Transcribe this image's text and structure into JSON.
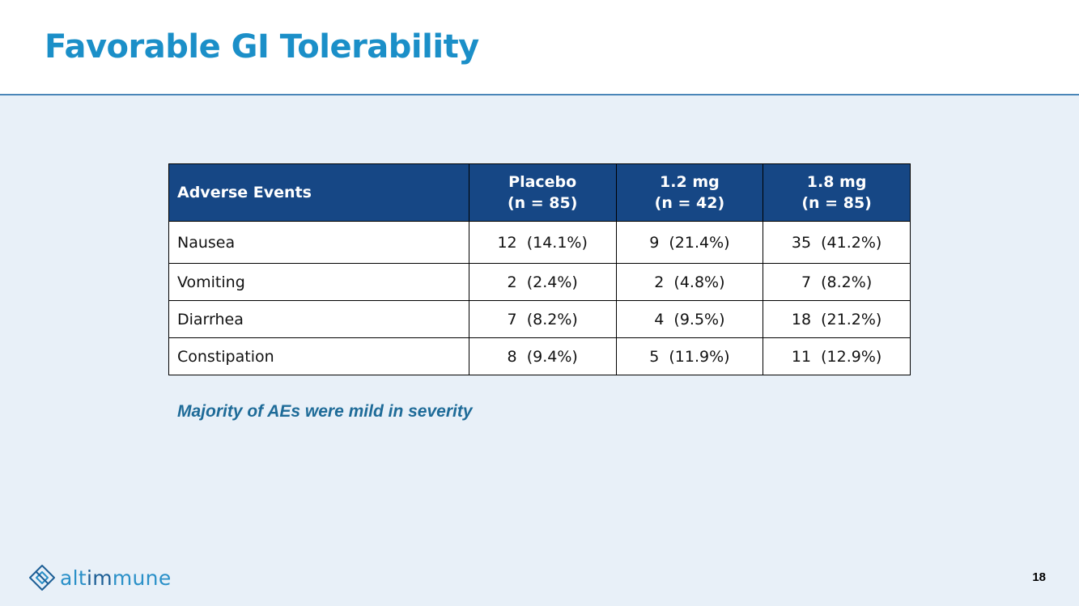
{
  "slide": {
    "title": "Favorable GI Tolerability",
    "page_number": "18"
  },
  "table": {
    "headers": [
      {
        "line1": "Adverse Events"
      },
      {
        "line1": "Placebo",
        "line2": "(n = 85)"
      },
      {
        "line1": "1.2 mg",
        "line2": "(n = 42)"
      },
      {
        "line1": "1.8 mg",
        "line2": "(n = 85)"
      }
    ],
    "rows": [
      {
        "event": "Nausea",
        "placebo": "12  (14.1%)",
        "dose_1_2": "9  (21.4%)",
        "dose_1_8": "35  (41.2%)"
      },
      {
        "event": "Vomiting",
        "placebo": "2  (2.4%)",
        "dose_1_2": "2  (4.8%)",
        "dose_1_8": "7  (8.2%)"
      },
      {
        "event": "Diarrhea",
        "placebo": "7  (8.2%)",
        "dose_1_2": "4  (9.5%)",
        "dose_1_8": "18  (21.2%)"
      },
      {
        "event": "Constipation",
        "placebo": "8  (9.4%)",
        "dose_1_2": "5  (11.9%)",
        "dose_1_8": "11  (12.9%)"
      }
    ]
  },
  "footnote": "Majority of AEs were mild in severity",
  "logo": {
    "icon": "altimmune-diamond-icon",
    "text_part1": "alt",
    "text_part2": "im",
    "text_part3": "mune"
  },
  "colors": {
    "title": "#1b8fc8",
    "header_fill": "#164785",
    "background": "#e8f0f8",
    "footnote": "#1e6b98",
    "logo_light": "#2a90c8",
    "logo_dark": "#1d5f96"
  }
}
